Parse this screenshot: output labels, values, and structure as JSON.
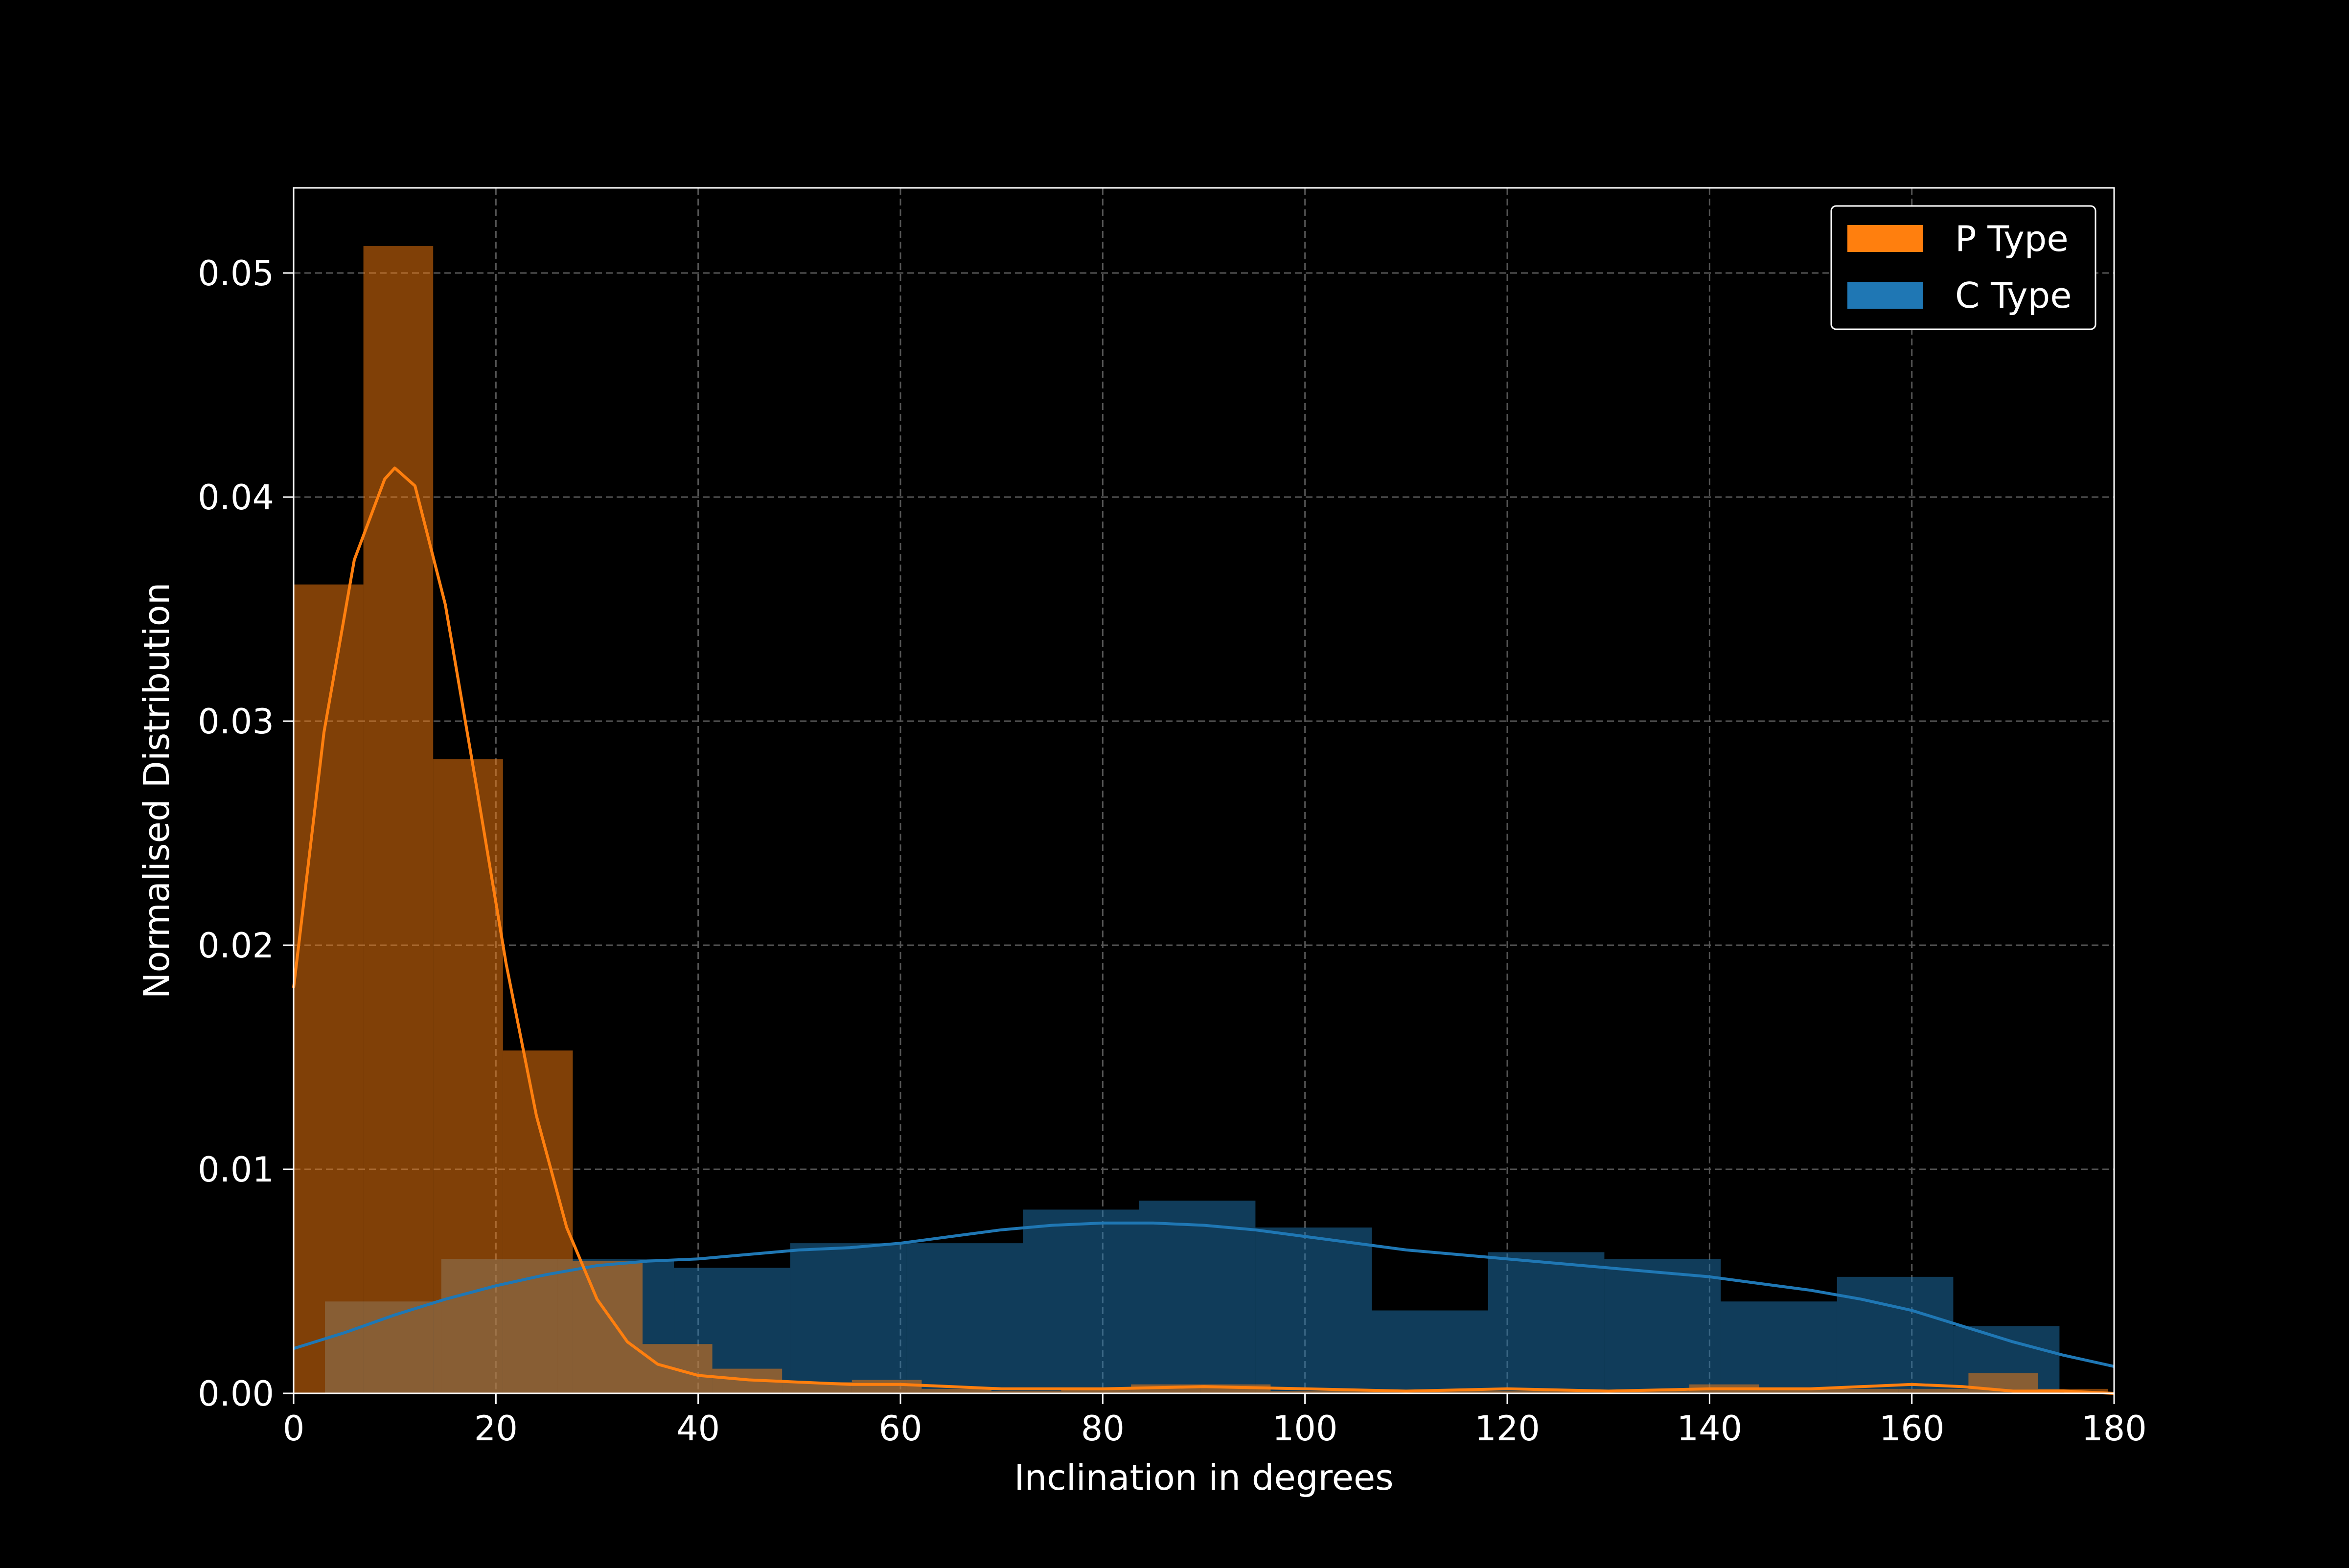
{
  "colors": {
    "background": "#000000",
    "axes": "#ffffff",
    "grid": "#555555",
    "p_type": "#ff7f0e",
    "c_type": "#1f77b4",
    "p_type_bar": "#7f3f07",
    "c_type_bar": "#10395a",
    "overlap_bar": "#4e5a5a"
  },
  "chart_data": {
    "type": "bar",
    "xlabel": "Inclination in degrees",
    "ylabel": "Normalised Distribution",
    "xlim": [
      0,
      180
    ],
    "ylim": [
      0,
      0.0538
    ],
    "xticks": [
      "0",
      "20",
      "40",
      "60",
      "80",
      "100",
      "120",
      "140",
      "160",
      "180"
    ],
    "yticks": [
      "0.00",
      "0.01",
      "0.02",
      "0.03",
      "0.04",
      "0.05"
    ],
    "xtick_values": [
      0,
      20,
      40,
      60,
      80,
      100,
      120,
      140,
      160,
      180
    ],
    "ytick_values": [
      0,
      0.01,
      0.02,
      0.03,
      0.04,
      0.05
    ],
    "grid": true,
    "legend_position": "top-right",
    "legend": [
      "P Type",
      "C Type"
    ],
    "series": [
      {
        "name": "P Type",
        "histogram": {
          "bin_edges": [
            0,
            6.9,
            13.8,
            20.7,
            27.6,
            34.5,
            41.4,
            48.3,
            55.2,
            62.1,
            69.0,
            75.9,
            82.8,
            89.7,
            96.6,
            103.5,
            110.4,
            117.3,
            124.2,
            131.1,
            138.0,
            144.9,
            151.8,
            158.7,
            165.6,
            172.5,
            179.4
          ],
          "values": [
            0.0361,
            0.0512,
            0.0283,
            0.0153,
            0.0059,
            0.0022,
            0.0011,
            0.0005,
            0.0006,
            0.0002,
            0.0001,
            0.0002,
            0.0004,
            0.0004,
            0.0001,
            0.0001,
            0.0001,
            0.0001,
            0.0001,
            0.0001,
            0.0004,
            0.0002,
            0.0002,
            0.0002,
            0.0009,
            0.0002
          ]
        },
        "kde": {
          "x": [
            0,
            3,
            6,
            9,
            10,
            12,
            15,
            18,
            21,
            24,
            27,
            30,
            33,
            36,
            40,
            45,
            50,
            55,
            60,
            70,
            80,
            90,
            100,
            110,
            120,
            130,
            140,
            150,
            155,
            160,
            165,
            170,
            175,
            180
          ],
          "y": [
            0.0181,
            0.0295,
            0.0372,
            0.0408,
            0.0413,
            0.0405,
            0.0352,
            0.0273,
            0.0192,
            0.0124,
            0.0074,
            0.0042,
            0.0023,
            0.0013,
            0.0008,
            0.0006,
            0.0005,
            0.0004,
            0.0004,
            0.0002,
            0.0002,
            0.0003,
            0.0002,
            0.0001,
            0.0002,
            0.0001,
            0.0002,
            0.0002,
            0.0003,
            0.0004,
            0.0003,
            0.0001,
            0.0001,
            0.0
          ]
        }
      },
      {
        "name": "C Type",
        "histogram": {
          "bin_edges": [
            3.1,
            14.6,
            26.1,
            37.6,
            49.1,
            60.6,
            72.1,
            83.6,
            95.1,
            106.6,
            118.1,
            129.6,
            141.1,
            152.6,
            164.1,
            174.6
          ],
          "values": [
            0.0041,
            0.006,
            0.006,
            0.0056,
            0.0067,
            0.0067,
            0.0082,
            0.0086,
            0.0074,
            0.0037,
            0.0063,
            0.006,
            0.0041,
            0.0052,
            0.003
          ]
        },
        "kde": {
          "x": [
            0,
            5,
            10,
            15,
            20,
            25,
            30,
            35,
            40,
            45,
            50,
            55,
            60,
            65,
            70,
            75,
            80,
            85,
            90,
            95,
            100,
            105,
            110,
            115,
            120,
            125,
            130,
            135,
            140,
            145,
            150,
            155,
            160,
            165,
            170,
            175,
            180
          ],
          "y": [
            0.002,
            0.0027,
            0.0035,
            0.0042,
            0.0048,
            0.0053,
            0.0057,
            0.0059,
            0.006,
            0.0062,
            0.0064,
            0.0065,
            0.0067,
            0.007,
            0.0073,
            0.0075,
            0.0076,
            0.0076,
            0.0075,
            0.0073,
            0.007,
            0.0067,
            0.0064,
            0.0062,
            0.006,
            0.0058,
            0.0056,
            0.0054,
            0.0052,
            0.0049,
            0.0046,
            0.0042,
            0.0037,
            0.003,
            0.0023,
            0.0017,
            0.0012
          ]
        }
      }
    ]
  }
}
